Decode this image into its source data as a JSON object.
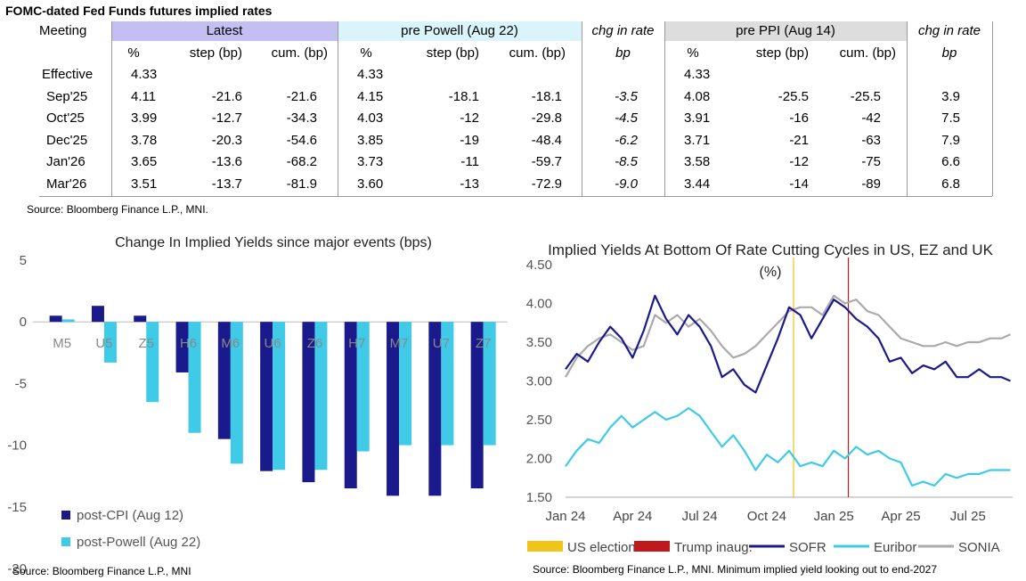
{
  "table": {
    "title": "FOMC-dated Fed Funds futures implied rates",
    "meeting_header": "Meeting",
    "groups": [
      "Latest",
      "pre Powell (Aug 22)",
      "chg in rate",
      "pre PPI (Aug 14)",
      "chg in rate"
    ],
    "subheaders": [
      "%",
      "step (bp)",
      "cum. (bp)",
      "%",
      "step (bp)",
      "cum. (bp)",
      "bp",
      "%",
      "step (bp)",
      "cum. (bp)",
      "bp"
    ],
    "rows": [
      {
        "meeting": "Effective",
        "vals": [
          "4.33",
          "",
          "",
          "4.33",
          "",
          "",
          "",
          "4.33",
          "",
          "",
          ""
        ]
      },
      {
        "meeting": "Sep'25",
        "vals": [
          "4.11",
          "-21.6",
          "-21.6",
          "4.15",
          "-18.1",
          "-18.1",
          "-3.5",
          "4.08",
          "-25.5",
          "-25.5",
          "3.9"
        ]
      },
      {
        "meeting": "Oct'25",
        "vals": [
          "3.99",
          "-12.7",
          "-34.3",
          "4.03",
          "-12",
          "-29.8",
          "-4.5",
          "3.91",
          "-16",
          "-42",
          "7.5"
        ]
      },
      {
        "meeting": "Dec'25",
        "vals": [
          "3.78",
          "-20.3",
          "-54.6",
          "3.85",
          "-19",
          "-48.4",
          "-6.2",
          "3.71",
          "-21",
          "-63",
          "7.9"
        ]
      },
      {
        "meeting": "Jan'26",
        "vals": [
          "3.65",
          "-13.6",
          "-68.2",
          "3.73",
          "-11",
          "-59.7",
          "-8.5",
          "3.58",
          "-12",
          "-75",
          "6.6"
        ]
      },
      {
        "meeting": "Mar'26",
        "vals": [
          "3.51",
          "-13.7",
          "-81.9",
          "3.60",
          "-13",
          "-72.9",
          "-9.0",
          "3.44",
          "-14",
          "-89",
          "6.8"
        ]
      }
    ],
    "source": "Source: Bloomberg Finance L.P., MNI."
  },
  "chart_data": [
    {
      "type": "bar",
      "title": "Change In Implied Yields since major events (bps)",
      "categories": [
        "M5",
        "U5",
        "Z5",
        "H6",
        "M6",
        "U6",
        "Z6",
        "H7",
        "M7",
        "U7",
        "Z7"
      ],
      "series": [
        {
          "name": "post-CPI (Aug 12)",
          "color": "#1a1a8c",
          "values": [
            0.5,
            1.3,
            0.5,
            -4.1,
            -9.5,
            -12.1,
            -13.0,
            -13.5,
            -14.1,
            -14.1,
            -13.5
          ]
        },
        {
          "name": "post-Powell (Aug 22)",
          "color": "#3fcbe8",
          "values": [
            0.2,
            -3.3,
            -6.5,
            -9.0,
            -11.5,
            -12.0,
            -12.0,
            -10.5,
            -10.0,
            -10.0,
            -10.0
          ]
        }
      ],
      "ylim": [
        -20,
        5
      ],
      "yticks": [
        "5",
        "0",
        "-5",
        "-10",
        "-15",
        "-20"
      ],
      "source": "Source: Bloomberg Finance L.P., MNI"
    },
    {
      "type": "line",
      "title": "Implied Yields At Bottom Of Rate Cutting Cycles in US, EZ and UK",
      "subtitle": "(%)",
      "ylim": [
        1.5,
        4.5
      ],
      "yticks": [
        "4.50",
        "4.00",
        "3.50",
        "3.00",
        "2.50",
        "2.00",
        "1.50"
      ],
      "xticks": [
        "Jan 24",
        "Apr 24",
        "Jul 24",
        "Oct 24",
        "Jan 25",
        "Apr 25",
        "Jul 25"
      ],
      "xlim": [
        0,
        20
      ],
      "vlines": [
        {
          "name": "US election",
          "x": 10.2,
          "color": "#f0c419"
        },
        {
          "name": "Trump inaug.",
          "x": 12.65,
          "color": "#c0191c"
        }
      ],
      "series": [
        {
          "name": "SOFR",
          "color": "#1a1a8c",
          "x": [
            0,
            0.5,
            1,
            1.5,
            2,
            2.5,
            3,
            3.5,
            4,
            4.5,
            5,
            5.5,
            6,
            6.5,
            7,
            7.5,
            8,
            8.5,
            9,
            9.5,
            10,
            10.5,
            11,
            11.5,
            12,
            12.5,
            13,
            13.5,
            14,
            14.5,
            15,
            15.5,
            16,
            16.5,
            17,
            17.5,
            18,
            18.5,
            19,
            19.5,
            19.9
          ],
          "values": [
            3.15,
            3.35,
            3.25,
            3.5,
            3.7,
            3.55,
            3.3,
            3.65,
            4.1,
            3.8,
            3.6,
            3.85,
            3.7,
            3.45,
            3.05,
            3.15,
            2.95,
            2.85,
            3.2,
            3.55,
            3.95,
            3.85,
            3.55,
            3.8,
            4.05,
            3.95,
            3.8,
            3.7,
            3.55,
            3.25,
            3.3,
            3.1,
            3.2,
            3.15,
            3.25,
            3.05,
            3.05,
            3.15,
            3.05,
            3.05,
            3.0
          ]
        },
        {
          "name": "Euribor",
          "color": "#3fcbe8",
          "x": [
            0,
            0.5,
            1,
            1.5,
            2,
            2.5,
            3,
            3.5,
            4,
            4.5,
            5,
            5.5,
            6,
            6.5,
            7,
            7.5,
            8,
            8.5,
            9,
            9.5,
            10,
            10.5,
            11,
            11.5,
            12,
            12.5,
            13,
            13.5,
            14,
            14.5,
            15,
            15.5,
            16,
            16.5,
            17,
            17.5,
            18,
            18.5,
            19,
            19.5,
            19.9
          ],
          "values": [
            1.9,
            2.1,
            2.25,
            2.2,
            2.4,
            2.55,
            2.4,
            2.5,
            2.6,
            2.5,
            2.55,
            2.65,
            2.55,
            2.35,
            2.15,
            2.3,
            2.1,
            1.85,
            2.05,
            1.95,
            2.1,
            1.9,
            1.95,
            1.9,
            2.1,
            2.0,
            2.15,
            2.05,
            2.1,
            2.0,
            1.95,
            1.65,
            1.7,
            1.65,
            1.8,
            1.75,
            1.8,
            1.8,
            1.85,
            1.85,
            1.85
          ]
        },
        {
          "name": "SONIA",
          "color": "#aaaaaa",
          "x": [
            0,
            0.5,
            1,
            1.5,
            2,
            2.5,
            3,
            3.5,
            4,
            4.5,
            5,
            5.5,
            6,
            6.5,
            7,
            7.5,
            8,
            8.5,
            9,
            9.5,
            10,
            10.5,
            11,
            11.5,
            12,
            12.5,
            13,
            13.5,
            14,
            14.5,
            15,
            15.5,
            16,
            16.5,
            17,
            17.5,
            18,
            18.5,
            19,
            19.5,
            19.9
          ],
          "values": [
            3.05,
            3.3,
            3.45,
            3.55,
            3.6,
            3.5,
            3.4,
            3.45,
            3.85,
            3.75,
            3.85,
            3.7,
            3.8,
            3.65,
            3.45,
            3.3,
            3.35,
            3.45,
            3.6,
            3.75,
            3.9,
            3.95,
            3.95,
            3.85,
            4.1,
            4.0,
            4.05,
            3.9,
            3.85,
            3.7,
            3.55,
            3.5,
            3.45,
            3.45,
            3.5,
            3.45,
            3.5,
            3.5,
            3.55,
            3.55,
            3.6
          ]
        }
      ],
      "source": "Source: Bloomberg Finance L.P., MNI. Minimum implied yield looking out to end-2027"
    }
  ]
}
